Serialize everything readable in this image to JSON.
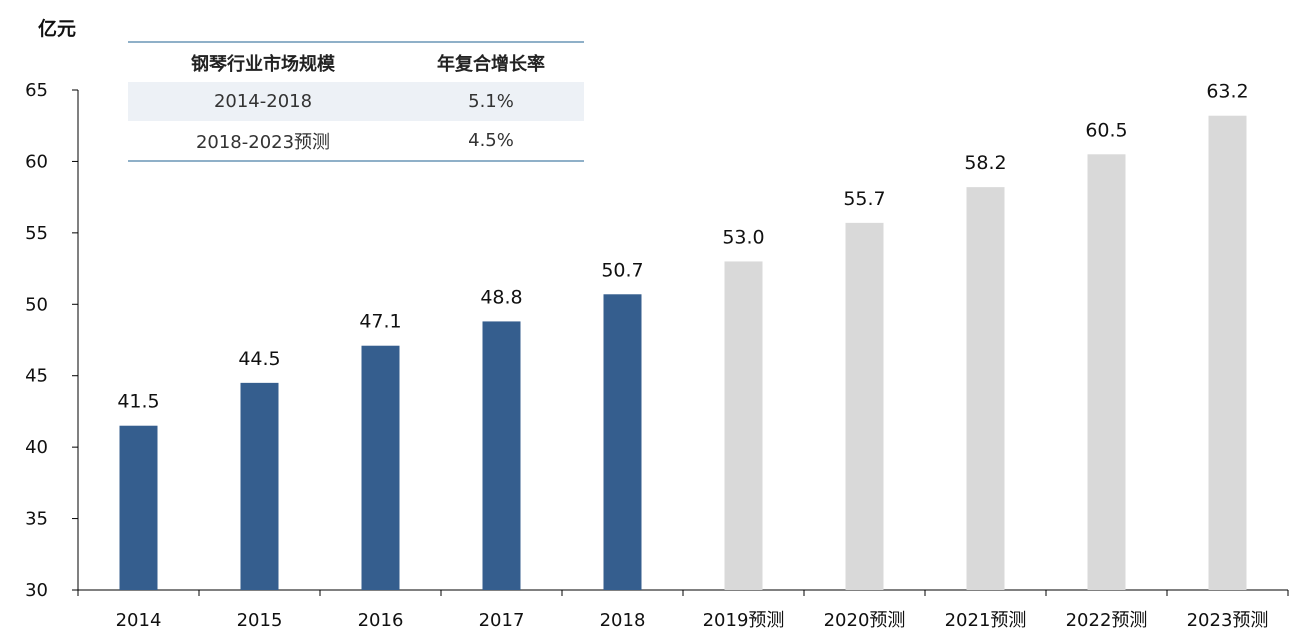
{
  "unit_label": "亿元",
  "cagr_table": {
    "headers": [
      "钢琴行业市场规模",
      "年复合增长率"
    ],
    "rows": [
      {
        "period": "2014-2018",
        "rate": "5.1%"
      },
      {
        "period": "2018-2023预测",
        "rate": "4.5%"
      }
    ]
  },
  "chart_data": {
    "type": "bar",
    "title": "",
    "xlabel": "",
    "ylabel": "亿元",
    "ylim": [
      30,
      65
    ],
    "yticks": [
      30,
      35,
      40,
      45,
      50,
      55,
      60,
      65
    ],
    "categories": [
      "2014",
      "2015",
      "2016",
      "2017",
      "2018",
      "2019预测",
      "2020预测",
      "2021预测",
      "2022预测",
      "2023预测"
    ],
    "values": [
      41.5,
      44.5,
      47.1,
      48.8,
      50.7,
      53.0,
      55.7,
      58.2,
      60.5,
      63.2
    ],
    "value_labels": [
      "41.5",
      "44.5",
      "47.1",
      "48.8",
      "50.7",
      "53.0",
      "55.7",
      "58.2",
      "60.5",
      "63.2"
    ],
    "colors": {
      "actual": "#355e8e",
      "forecast": "#d9d9d9"
    },
    "forecast_start_index": 5,
    "grid": false,
    "legend": "none"
  }
}
